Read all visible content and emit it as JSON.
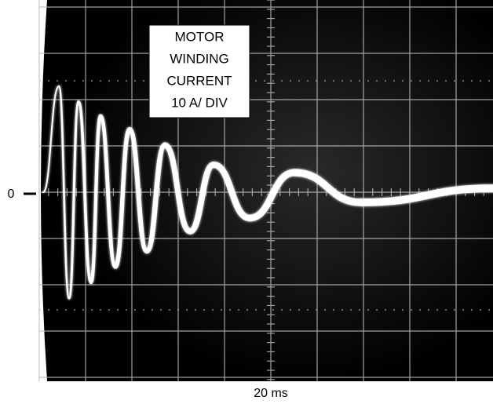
{
  "label": {
    "lines": [
      "MOTOR",
      "WINDING",
      "CURRENT",
      "10 A/ DIV"
    ]
  },
  "zero_label": "0",
  "time_label": "20 ms"
}
